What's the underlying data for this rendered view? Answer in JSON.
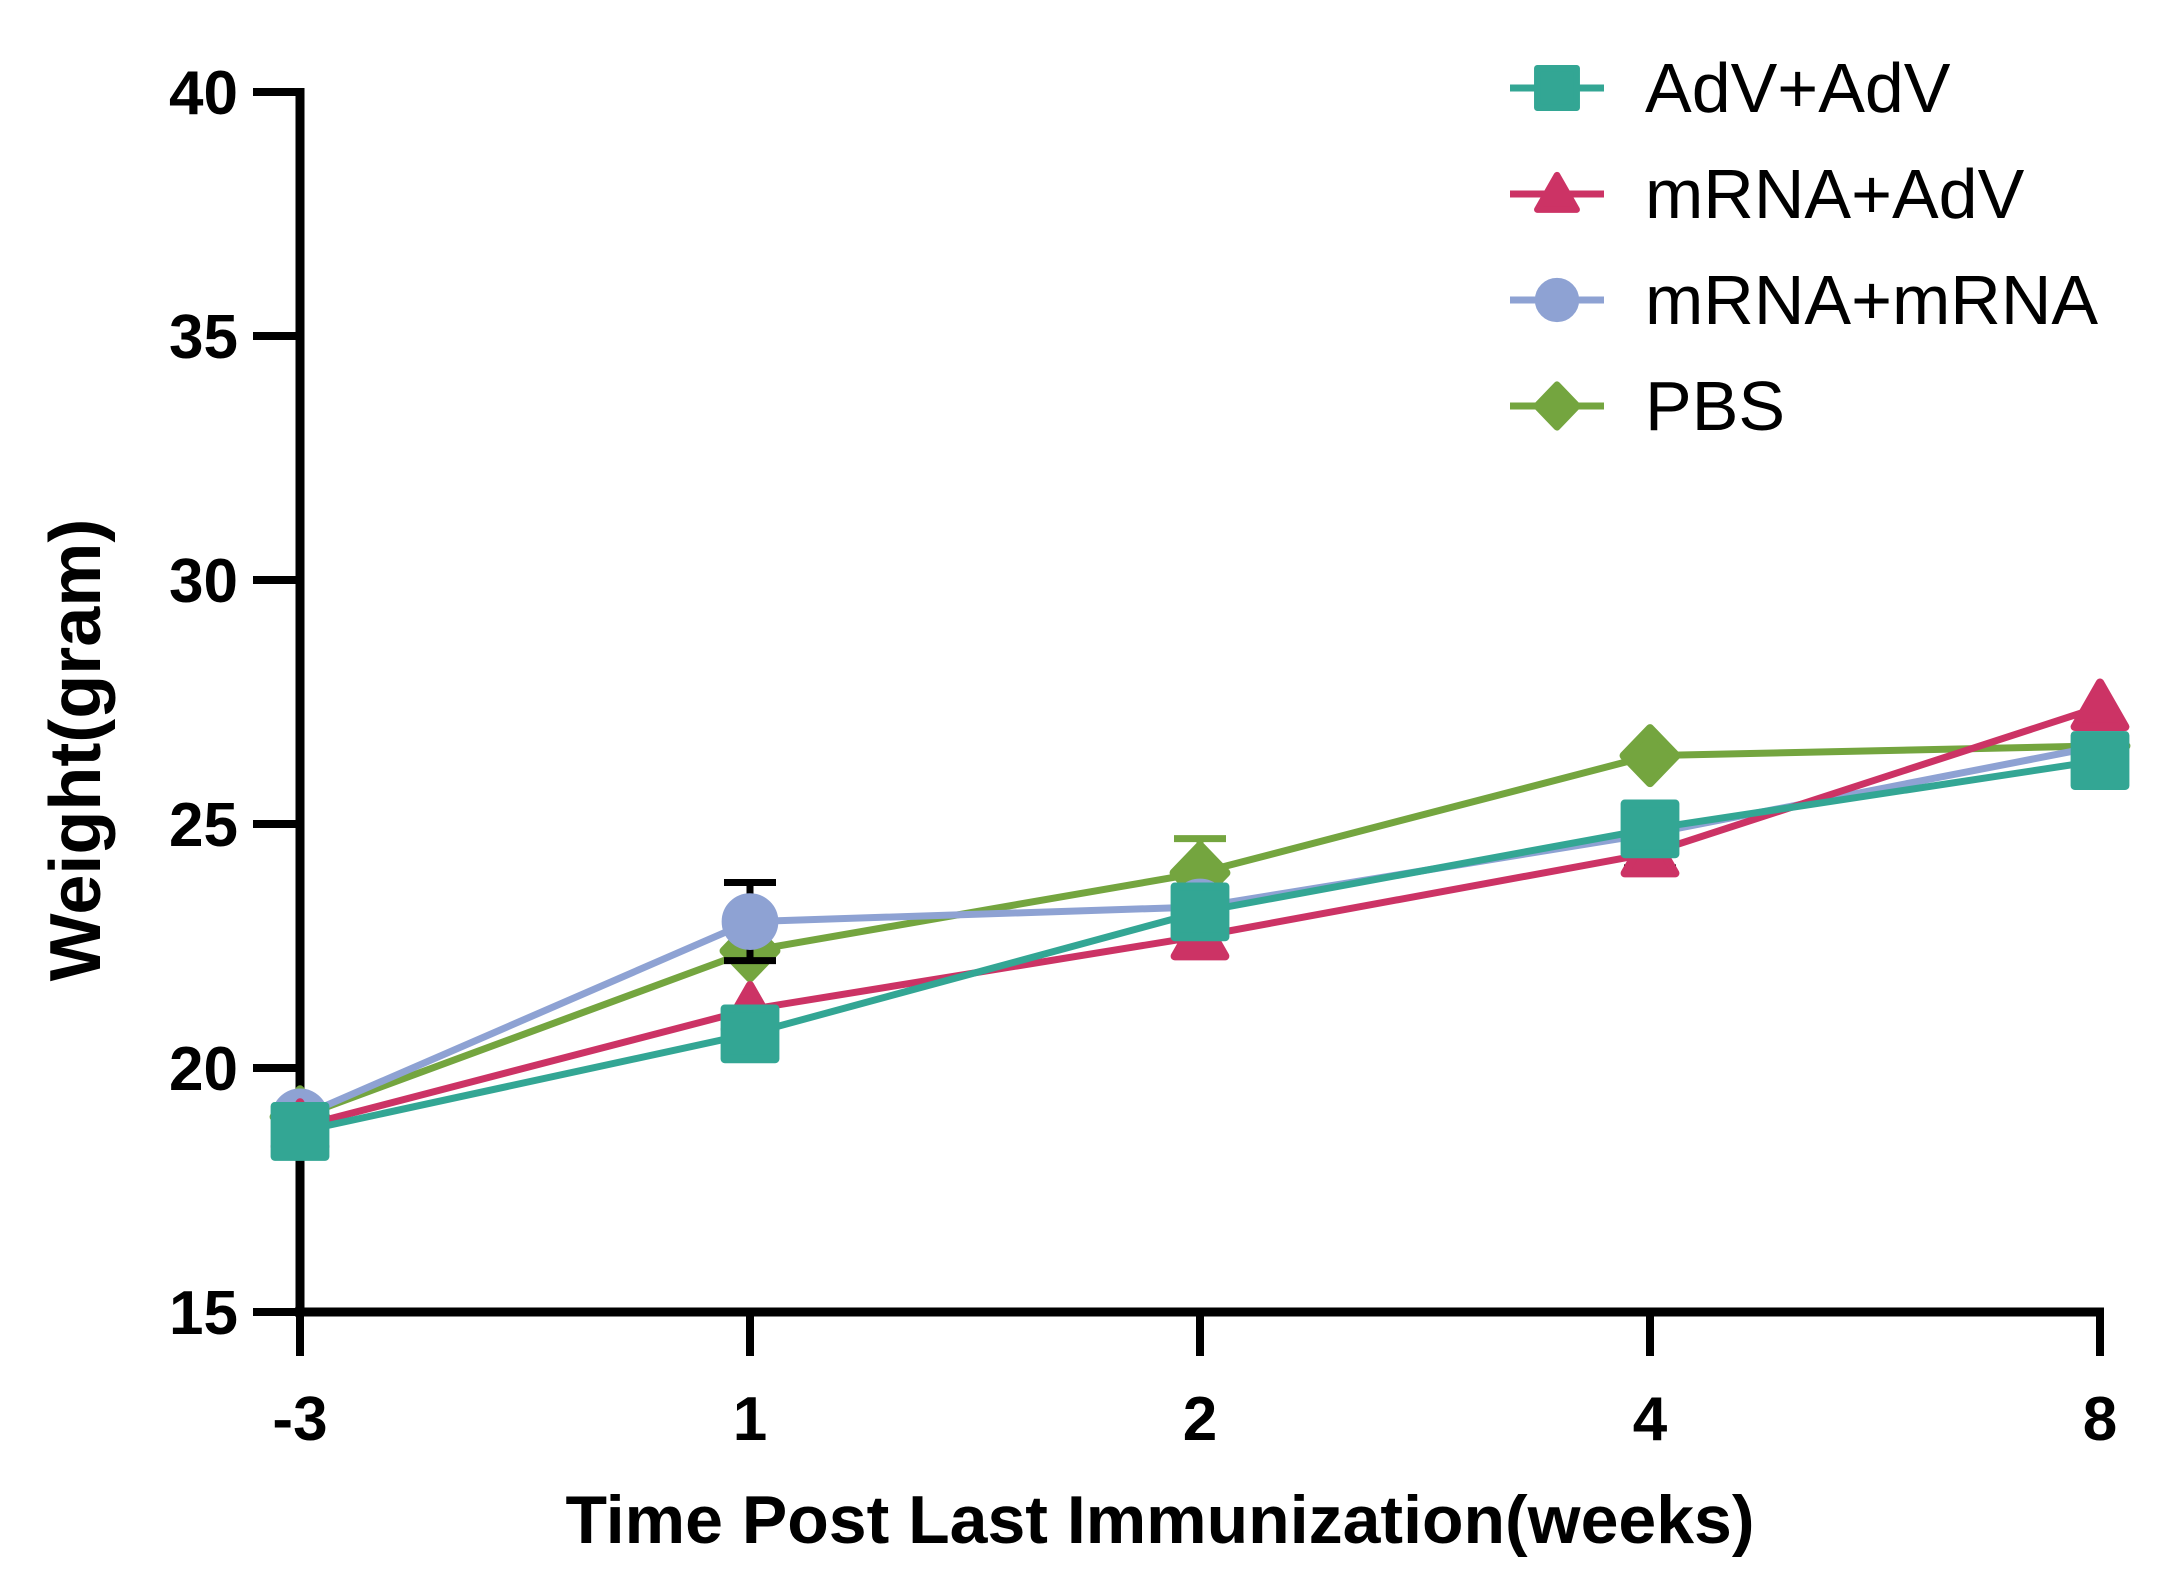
{
  "chart_data": {
    "type": "line",
    "title": "",
    "xlabel": "Time Post Last Immunization(weeks)",
    "ylabel": "Weight(gram)",
    "x": [
      -3,
      1,
      2,
      4,
      8
    ],
    "x_tick_labels": [
      "-3",
      "1",
      "2",
      "4",
      "8"
    ],
    "ylim": [
      15,
      40
    ],
    "yticks": [
      15,
      20,
      25,
      30,
      35,
      40
    ],
    "grid": false,
    "legend_position": "top-right",
    "series": [
      {
        "id": "adv-adv",
        "name": "AdV+AdV",
        "marker": "square",
        "color": "#33A694",
        "values": [
          18.7,
          20.7,
          23.2,
          24.9,
          26.3
        ]
      },
      {
        "id": "mrna-adv",
        "name": "mRNA+AdV",
        "marker": "triangle",
        "color": "#CC3365",
        "values": [
          18.8,
          21.2,
          22.7,
          24.4,
          27.4
        ]
      },
      {
        "id": "mrna-mrna",
        "name": "mRNA+mRNA",
        "marker": "circle",
        "color": "#8EA2D3",
        "values": [
          19.0,
          23.0,
          23.3,
          24.8,
          26.6
        ]
      },
      {
        "id": "pbs",
        "name": "PBS",
        "marker": "diamond",
        "color": "#74A53F",
        "values": [
          19.0,
          22.4,
          24.0,
          26.4,
          26.6
        ]
      }
    ],
    "error_bars": [
      {
        "series_index": 2,
        "x_index": 1,
        "plus": 0.8,
        "minus": 0.8,
        "color": "#000000"
      },
      {
        "series_index": 3,
        "x_index": 2,
        "plus": 0.7,
        "minus": 0.7,
        "color": null
      },
      {
        "series_index": 1,
        "x_index": 3,
        "plus": 0.3,
        "minus": 0.3,
        "color": "#000000"
      }
    ],
    "draw_order": [
      3,
      2,
      1,
      0
    ]
  }
}
